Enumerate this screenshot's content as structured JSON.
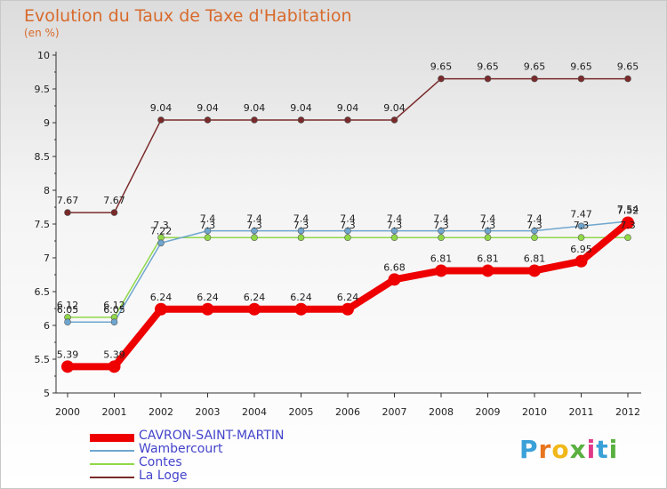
{
  "page": {
    "title": "Evolution du Taux de Taxe d'Habitation",
    "subtitle": "(en %)"
  },
  "logo": {
    "letters": [
      "P",
      "r",
      "o",
      "x",
      "i",
      "t",
      "i"
    ],
    "colors": [
      "#3aa0d8",
      "#e8761e",
      "#f0b818",
      "#5ab040",
      "#e03a8a",
      "#3aa0d8",
      "#5ab040"
    ]
  },
  "chart_data": {
    "type": "line",
    "title": "Evolution du Taux de Taxe d'Habitation",
    "subtitle": "(en %)",
    "xlabel": "",
    "ylabel": "",
    "x": [
      "2000",
      "2001",
      "2002",
      "2003",
      "2004",
      "2005",
      "2006",
      "2007",
      "2008",
      "2009",
      "2010",
      "2011",
      "2012"
    ],
    "ylim": [
      5,
      10
    ],
    "yticks": [
      "5",
      "5.5",
      "6",
      "6.5",
      "7",
      "7.5",
      "8",
      "8.5",
      "9",
      "9.5",
      "10"
    ],
    "grid": false,
    "legend": "bottom-left",
    "series": [
      {
        "name": "CAVRON-SAINT-MARTIN",
        "color": "#ee0000",
        "values": [
          5.39,
          5.39,
          6.24,
          6.24,
          6.24,
          6.24,
          6.24,
          6.68,
          6.81,
          6.81,
          6.81,
          6.95,
          7.52
        ],
        "labels": [
          "5.39",
          "5.39",
          "6.24",
          "6.24",
          "6.24",
          "6.24",
          "6.24",
          "6.68",
          "6.81",
          "6.81",
          "6.81",
          "6.95",
          "7.52"
        ]
      },
      {
        "name": "Wambercourt",
        "color": "#6fa6cf",
        "values": [
          6.05,
          6.05,
          7.22,
          7.4,
          7.4,
          7.4,
          7.4,
          7.4,
          7.4,
          7.4,
          7.4,
          7.47,
          7.54
        ],
        "labels": [
          "6.05",
          "6.05",
          "7.22",
          "7.4",
          "7.4",
          "7.4",
          "7.4",
          "7.4",
          "7.4",
          "7.4",
          "7.4",
          "7.47",
          "7.54"
        ]
      },
      {
        "name": "Contes",
        "color": "#90d848",
        "values": [
          6.12,
          6.12,
          7.3,
          7.3,
          7.3,
          7.3,
          7.3,
          7.3,
          7.3,
          7.3,
          7.3,
          7.3,
          7.3
        ],
        "labels": [
          "6.12",
          "6.12",
          "7.3",
          "7.3",
          "7.3",
          "7.3",
          "7.3",
          "7.3",
          "7.3",
          "7.3",
          "7.3",
          "7.3",
          "7.3"
        ]
      },
      {
        "name": "La Loge",
        "color": "#7a2a2a",
        "values": [
          7.67,
          7.67,
          9.04,
          9.04,
          9.04,
          9.04,
          9.04,
          9.04,
          9.65,
          9.65,
          9.65,
          9.65,
          9.65
        ],
        "labels": [
          "7.67",
          "7.67",
          "9.04",
          "9.04",
          "9.04",
          "9.04",
          "9.04",
          "9.04",
          "9.65",
          "9.65",
          "9.65",
          "9.65",
          "9.65"
        ]
      }
    ]
  }
}
